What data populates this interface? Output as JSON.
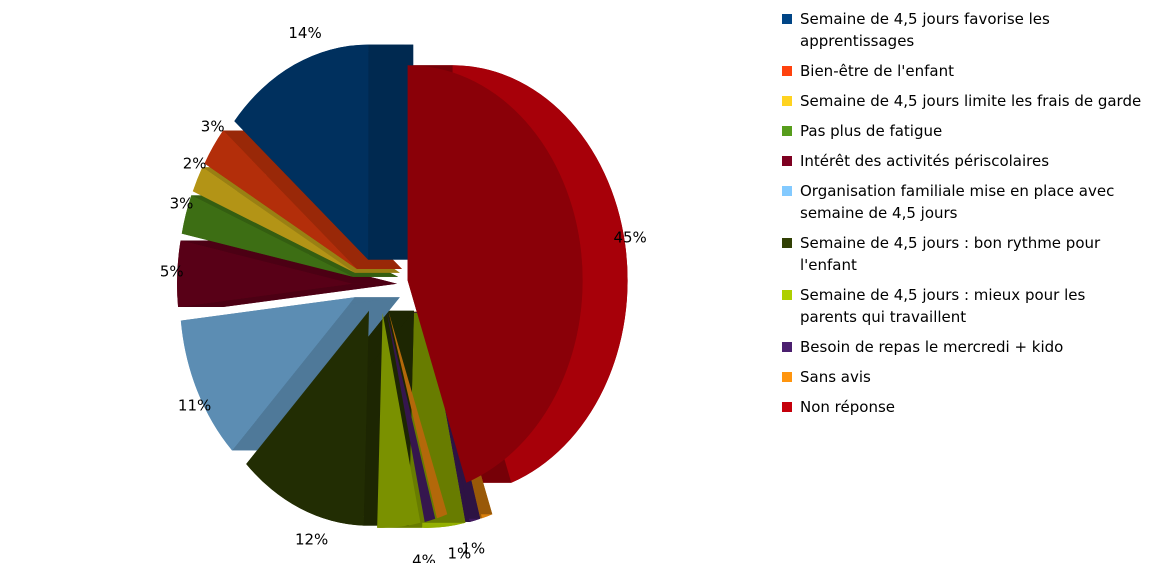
{
  "chart_data": {
    "type": "pie",
    "categories": [
      "Semaine de 4,5 jours favorise les apprentissages",
      "Bien-être de l'enfant",
      "Semaine de 4,5 jours limite les frais de garde",
      "Pas plus de fatigue",
      "Intérêt des activités périscolaires",
      "Organisation familiale mise en place avec semaine de 4,5 jours",
      "Semaine de 4,5 jours : bon rythme pour l'enfant",
      "Semaine de 4,5 jours : mieux pour les parents qui travaillent",
      "Besoin de repas le mercredi + kido",
      "Sans avis",
      "Non réponse"
    ],
    "values": [
      14,
      3,
      2,
      3,
      5,
      11,
      12,
      4,
      1,
      1,
      45
    ],
    "value_labels": [
      "14%",
      "3%",
      "2%",
      "3%",
      "5%",
      "11%",
      "12%",
      "4%",
      "1%",
      "1%",
      "45%"
    ],
    "colors": [
      "#004586",
      "#ff420e",
      "#ffd320",
      "#579d1c",
      "#7e0021",
      "#83caff",
      "#314004",
      "#aecf00",
      "#4b1f6f",
      "#ff950e",
      "#c5000b"
    ],
    "legend": "right"
  }
}
